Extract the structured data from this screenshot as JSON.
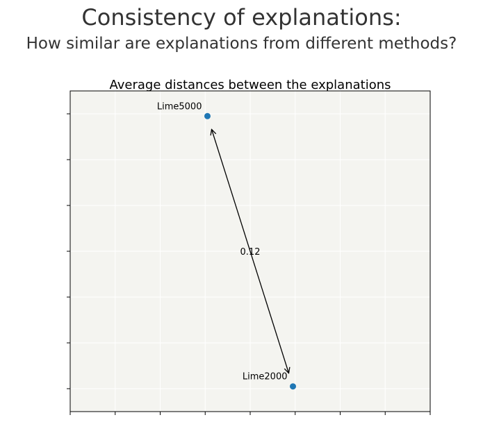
{
  "figure": {
    "title": "Consistency of explanations:",
    "subtitle": "How similar are explanations from different methods?"
  },
  "colors": {
    "plot_background": "#f4f4f0",
    "grid": "#ffffff",
    "point": "#1f77b4",
    "text": "#333333",
    "annotation": "#000000"
  },
  "chart_data": {
    "type": "scatter",
    "title": "Average distances between the explanations",
    "xlabel": "",
    "ylabel": "",
    "grid": true,
    "tick_labels_visible": false,
    "xlim": [
      -0.16,
      0.16
    ],
    "ylim": [
      -0.14,
      0.14
    ],
    "x_ticks": [
      -0.16,
      -0.12,
      -0.08,
      -0.04,
      0.0,
      0.04,
      0.08,
      0.12,
      0.16
    ],
    "y_ticks": [
      -0.12,
      -0.08,
      -0.04,
      0.0,
      0.04,
      0.08,
      0.12
    ],
    "points": [
      {
        "label": "Lime5000",
        "x": -0.038,
        "y": 0.118
      },
      {
        "label": "Lime2000",
        "x": 0.038,
        "y": -0.118
      }
    ],
    "distances": [
      {
        "from": "Lime5000",
        "to": "Lime2000",
        "label": "0.12"
      }
    ]
  }
}
